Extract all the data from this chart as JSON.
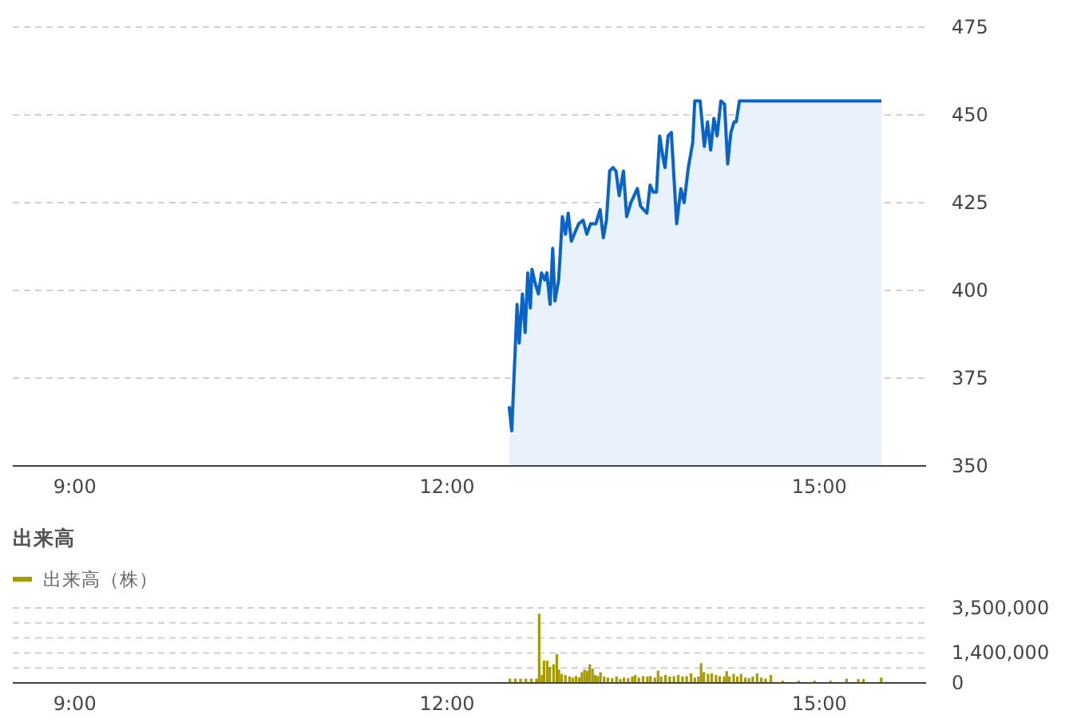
{
  "chart_data": [
    {
      "type": "area",
      "x": [
        12.5,
        12.521,
        12.564,
        12.581,
        12.607,
        12.629,
        12.65,
        12.671,
        12.684,
        12.71,
        12.736,
        12.761,
        12.787,
        12.804,
        12.83,
        12.851,
        12.869,
        12.899,
        12.929,
        12.954,
        12.976,
        13.001,
        13.036,
        13.061,
        13.096,
        13.126,
        13.156,
        13.199,
        13.233,
        13.259,
        13.284,
        13.31,
        13.336,
        13.361,
        13.387,
        13.421,
        13.447,
        13.481,
        13.533,
        13.559,
        13.584,
        13.61,
        13.636,
        13.661,
        13.687,
        13.713,
        13.739,
        13.756,
        13.781,
        13.807,
        13.85,
        13.884,
        13.91,
        13.944,
        13.979,
        13.996,
        14.039,
        14.073,
        14.099,
        14.124,
        14.15,
        14.176,
        14.206,
        14.236,
        14.261,
        14.287,
        14.313,
        14.33,
        14.356,
        15.5
      ],
      "series": [
        {
          "color": "#0a64c8",
          "values": [
            367,
            360,
            396,
            385,
            399,
            388,
            405,
            395,
            406,
            402,
            399,
            405,
            403,
            405,
            396,
            412,
            397,
            403,
            421,
            416,
            422,
            414,
            417,
            419,
            420,
            416,
            419,
            419,
            423,
            415,
            420,
            434,
            435,
            434,
            427,
            434,
            421,
            425,
            429,
            424,
            423,
            422,
            430,
            428,
            428,
            444,
            438,
            435,
            444,
            445,
            419,
            429,
            425,
            435,
            442,
            454,
            454,
            441,
            448,
            440,
            449,
            444,
            454,
            453,
            436,
            445,
            448,
            448,
            454,
            454
          ]
        }
      ],
      "xlim": [
        8.5,
        15.86
      ],
      "xticks": [
        {
          "value": 9,
          "label": "9:00"
        },
        {
          "value": 12,
          "label": "12:00"
        },
        {
          "value": 15,
          "label": "15:00"
        }
      ],
      "ylim": [
        350,
        475
      ],
      "yticks": [
        350,
        375,
        400,
        425,
        450,
        475
      ],
      "grid": "y"
    },
    {
      "type": "bar",
      "title": "出来高",
      "legend": "top left",
      "x": [
        12.506,
        12.549,
        12.592,
        12.635,
        12.678,
        12.721,
        12.742,
        12.764,
        12.781,
        12.807,
        12.828,
        12.858,
        12.884,
        12.901,
        12.923,
        12.953,
        12.987,
        13.013,
        13.039,
        13.064,
        13.086,
        13.107,
        13.129,
        13.15,
        13.172,
        13.193,
        13.214,
        13.236,
        13.266,
        13.296,
        13.33,
        13.365,
        13.395,
        13.425,
        13.459,
        13.493,
        13.515,
        13.545,
        13.579,
        13.614,
        13.639,
        13.674,
        13.7,
        13.725,
        13.76,
        13.794,
        13.828,
        13.863,
        13.897,
        13.931,
        13.966,
        13.996,
        14.026,
        14.047,
        14.069,
        14.103,
        14.133,
        14.167,
        14.197,
        14.232,
        14.253,
        14.275,
        14.309,
        14.339,
        14.369,
        14.403,
        14.433,
        14.463,
        14.498,
        14.532,
        14.566,
        14.609,
        14.704,
        14.833,
        14.961,
        15.09,
        15.219,
        15.313,
        15.356,
        15.498
      ],
      "series": [
        {
          "name": "出来高（株）",
          "color": "#a59b06",
          "values": [
            200000,
            200000,
            200000,
            200000,
            200000,
            200000,
            3230000,
            370000,
            1040000,
            1040000,
            750000,
            870000,
            1340000,
            620000,
            420000,
            370000,
            300000,
            250000,
            320000,
            250000,
            500000,
            620000,
            570000,
            870000,
            670000,
            370000,
            320000,
            500000,
            300000,
            250000,
            220000,
            300000,
            180000,
            250000,
            220000,
            300000,
            370000,
            250000,
            320000,
            300000,
            320000,
            250000,
            570000,
            300000,
            370000,
            300000,
            320000,
            370000,
            300000,
            320000,
            450000,
            250000,
            300000,
            920000,
            500000,
            420000,
            450000,
            370000,
            320000,
            300000,
            550000,
            300000,
            420000,
            300000,
            420000,
            250000,
            220000,
            300000,
            450000,
            250000,
            200000,
            370000,
            100000,
            100000,
            100000,
            100000,
            200000,
            180000,
            180000,
            250000
          ]
        }
      ],
      "xlim": [
        8.5,
        15.86
      ],
      "xticks": [
        {
          "value": 9,
          "label": "9:00"
        },
        {
          "value": 12,
          "label": "12:00"
        },
        {
          "value": 15,
          "label": "15:00"
        }
      ],
      "ylim": [
        0,
        3500000
      ],
      "yticks": [
        0,
        {
          "value": 700000,
          "label": null
        },
        {
          "value": 1400000,
          "label": "1,400,000"
        },
        {
          "value": 2100000,
          "label": null
        },
        {
          "value": 2800000,
          "label": null
        },
        {
          "value": 3500000,
          "label": "3,500,000"
        }
      ],
      "grid": "y"
    }
  ]
}
